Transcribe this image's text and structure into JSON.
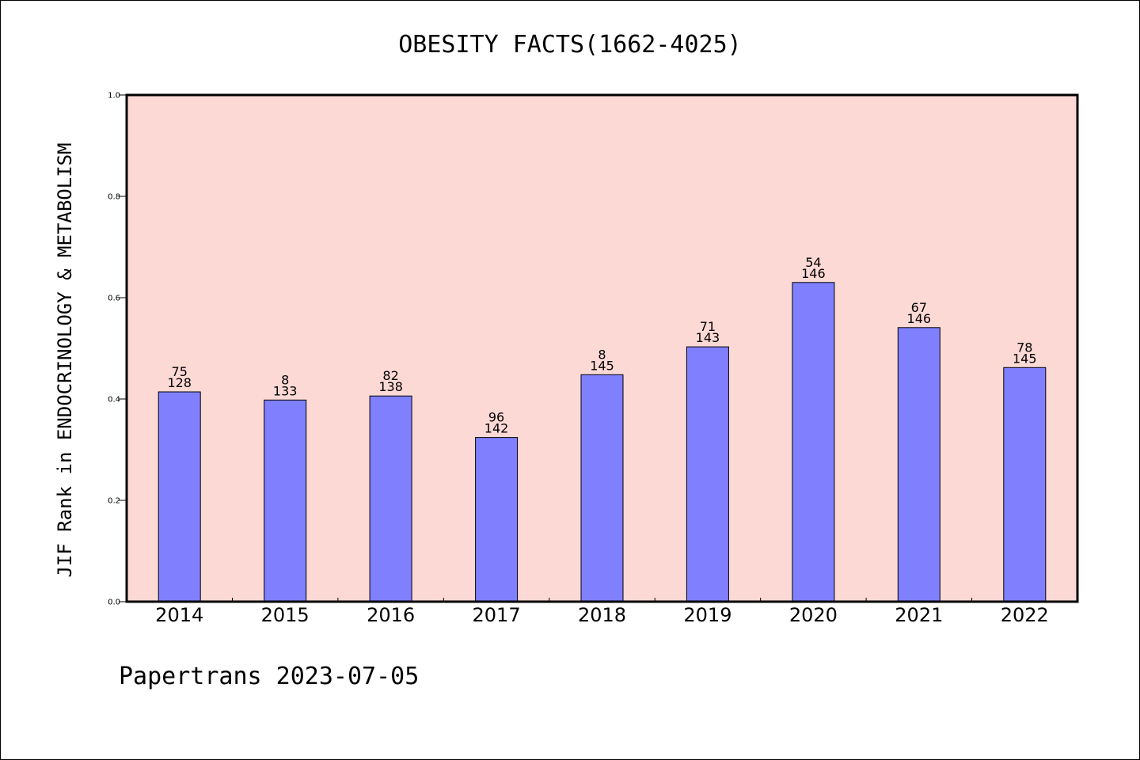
{
  "chart_data": {
    "type": "bar",
    "title": "OBESITY FACTS(1662-4025)",
    "ylabel": "JIF Rank in ENDOCRINOLOGY & METABOLISM",
    "xlabel": "",
    "ylim": [
      0,
      1.0
    ],
    "yticks": [
      "0.0",
      "0.2",
      "0.4",
      "0.6",
      "0.8",
      "1.0"
    ],
    "categories": [
      "2014",
      "2015",
      "2016",
      "2017",
      "2018",
      "2019",
      "2020",
      "2021",
      "2022"
    ],
    "values": [
      0.414,
      0.398,
      0.406,
      0.324,
      0.448,
      0.503,
      0.63,
      0.541,
      0.462
    ],
    "rank_labels": [
      "75",
      "8",
      "82",
      "96",
      "8",
      "71",
      "54",
      "67",
      "78"
    ],
    "total_labels": [
      "128",
      "133",
      "138",
      "142",
      "145",
      "143",
      "146",
      "146",
      "145"
    ],
    "grid": false,
    "colors": {
      "plot_background": "#fdd9d6",
      "bar_fill": "#8080ff",
      "bar_stroke": "#000000"
    }
  },
  "footer": {
    "text": "Papertrans 2023-07-05"
  }
}
